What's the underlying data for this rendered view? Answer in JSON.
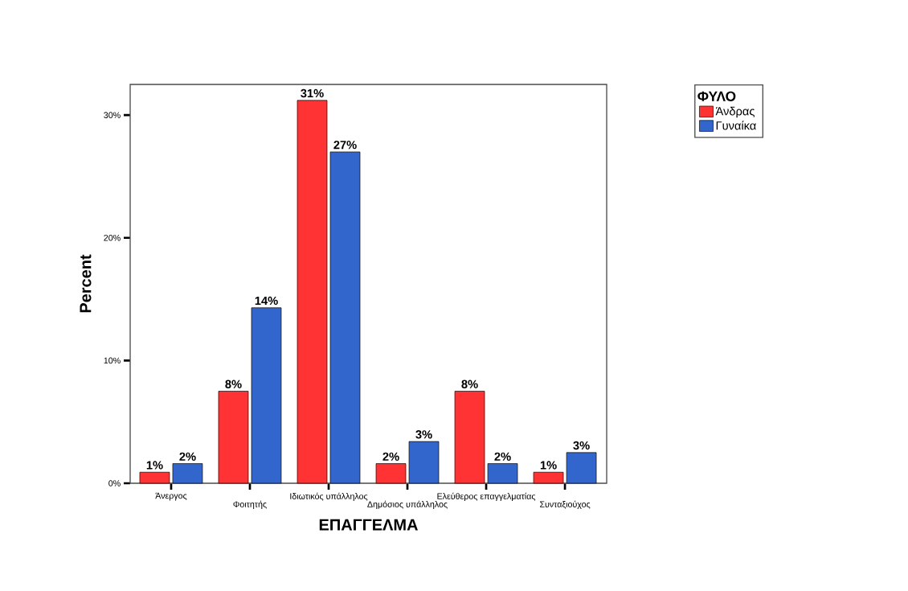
{
  "chart_data": {
    "type": "bar",
    "xlabel": "ΕΠΑΓΓΕΛΜΑ",
    "ylabel": "Percent",
    "legend_title": "ΦΥΛΟ",
    "categories": [
      "Άνεργος",
      "Φοιτητής",
      "Ιδιωτικός υπάλληλος",
      "Δημόσιος υπάλληλος",
      "Ελεύθερος επαγγελματίας",
      "Συνταξιούχος"
    ],
    "series": [
      {
        "name": "Άνδρας",
        "color": "#ff3333",
        "values": [
          0.9,
          7.5,
          31.2,
          1.6,
          7.5,
          0.9
        ],
        "value_labels": [
          "1%",
          "8%",
          "31%",
          "2%",
          "8%",
          "1%"
        ]
      },
      {
        "name": "Γυναίκα",
        "color": "#3366cc",
        "values": [
          1.6,
          14.3,
          27.0,
          3.4,
          1.6,
          2.5
        ],
        "value_labels": [
          "2%",
          "14%",
          "27%",
          "3%",
          "2%",
          "3%"
        ]
      }
    ],
    "ylim": [
      0,
      32.5
    ],
    "yticks": [
      {
        "value": 0,
        "label": "0%"
      },
      {
        "value": 10,
        "label": "10%"
      },
      {
        "value": 20,
        "label": "20%"
      },
      {
        "value": 30,
        "label": "30%"
      }
    ],
    "grid": false,
    "legend": "right"
  }
}
